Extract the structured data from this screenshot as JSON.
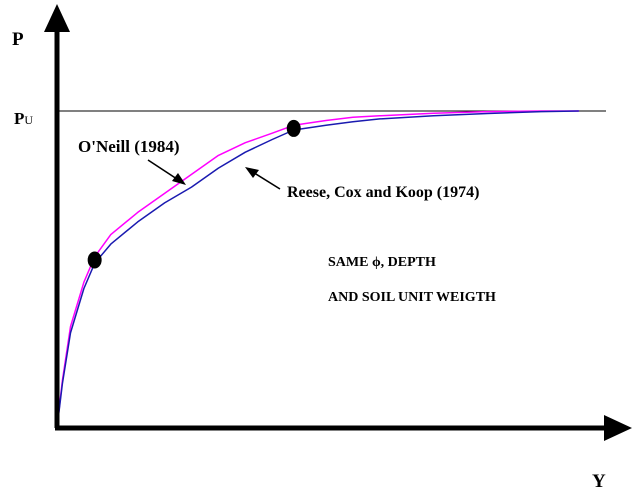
{
  "chart_data": {
    "type": "line",
    "title": "",
    "xlabel": "Y",
    "ylabel": "P",
    "xlim": [
      0,
      1
    ],
    "ylim": [
      0,
      1
    ],
    "grid": false,
    "reference_lines": [
      {
        "axis": "y",
        "value": 1,
        "label": "P",
        "label_sub": "U"
      }
    ],
    "series": [
      {
        "name": "O'Neill (1984)",
        "color": "#ff00ff",
        "x": [
          0,
          0.01,
          0.025,
          0.05,
          0.07,
          0.1,
          0.15,
          0.2,
          0.25,
          0.3,
          0.35,
          0.4,
          0.44,
          0.5,
          0.55,
          0.6,
          0.7,
          0.8,
          0.9,
          0.97
        ],
        "y": [
          0,
          0.15,
          0.32,
          0.46,
          0.54,
          0.61,
          0.68,
          0.74,
          0.8,
          0.86,
          0.9,
          0.93,
          0.955,
          0.97,
          0.98,
          0.985,
          0.993,
          0.998,
          1.0,
          1.0
        ]
      },
      {
        "name": "Reese, Cox and Koop (1974)",
        "color": "#1a1ab0",
        "x": [
          0,
          0.01,
          0.025,
          0.05,
          0.07,
          0.1,
          0.15,
          0.2,
          0.25,
          0.3,
          0.35,
          0.4,
          0.44,
          0.5,
          0.55,
          0.6,
          0.7,
          0.8,
          0.9,
          0.97
        ],
        "y": [
          0,
          0.14,
          0.3,
          0.44,
          0.52,
          0.58,
          0.65,
          0.71,
          0.76,
          0.82,
          0.87,
          0.91,
          0.94,
          0.955,
          0.966,
          0.975,
          0.985,
          0.992,
          0.998,
          1.0
        ]
      }
    ],
    "markers": [
      {
        "x": 0.07,
        "y": 0.53
      },
      {
        "x": 0.44,
        "y": 0.945
      }
    ],
    "annotations": [
      {
        "text": "O'Neill (1984)",
        "points_to_series": 0
      },
      {
        "text": "Reese, Cox and Koop (1974)",
        "points_to_series": 1
      },
      {
        "text": "SAME ϕ, DEPTH"
      },
      {
        "text": "AND SOIL UNIT WEIGTH"
      }
    ]
  }
}
